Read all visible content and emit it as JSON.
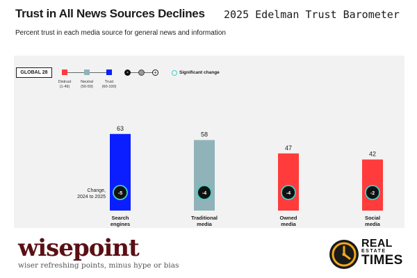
{
  "header": {
    "title": "Trust in All News Sources Declines",
    "source": "2025 Edelman Trust Barometer",
    "subtitle": "Percent trust in each media source for general news and information"
  },
  "legend": {
    "badge": "GLOBAL 28",
    "levels": [
      {
        "name": "Distrust",
        "range": "(1-49)",
        "color": "#ff3b3b"
      },
      {
        "name": "Neutral",
        "range": "(50-59)",
        "color": "#8fb3b8"
      },
      {
        "name": "Trust",
        "range": "(60-100)",
        "color": "#0a1eff"
      }
    ],
    "change_symbols": [
      "-",
      "+"
    ],
    "significant_change": "Significant change"
  },
  "change_label": {
    "line1": "Change,",
    "line2": "2024 to 2025"
  },
  "chart_data": {
    "type": "bar",
    "categories": [
      "Search engines",
      "Traditional media",
      "Owned media",
      "Social media"
    ],
    "category_lines": [
      [
        "Search",
        "engines"
      ],
      [
        "Traditional",
        "media"
      ],
      [
        "Owned",
        "media"
      ],
      [
        "Social",
        "media"
      ]
    ],
    "values": [
      63,
      58,
      47,
      42
    ],
    "changes": [
      "-5",
      "-4",
      "-4",
      "-2"
    ],
    "bar_colors": [
      "#0a1eff",
      "#8fb3b8",
      "#ff3b3b",
      "#ff3b3b"
    ],
    "ylim": [
      0,
      100
    ],
    "title": "Trust in All News Sources Declines",
    "xlabel": "",
    "ylabel": ""
  },
  "footer": {
    "left_logo": "wisepoint",
    "left_tagline": "wiser refreshing points, minus hype or bias",
    "right_logo_line1": "REAL",
    "right_logo_line2": "ESTATE",
    "right_logo_line3": "TIMES",
    "right_logo_icon": "clock-icon"
  }
}
